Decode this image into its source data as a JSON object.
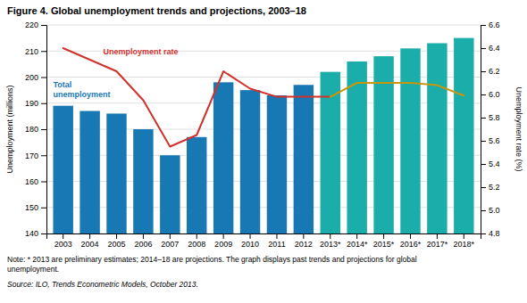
{
  "chart_data": {
    "type": "bar",
    "title": "Figure 4.  Global unemployment trends and projections, 2003–18",
    "categories": [
      "2003",
      "2004",
      "2005",
      "2006",
      "2007",
      "2008",
      "2009",
      "2010",
      "2011",
      "2012",
      "2013*",
      "2014*",
      "2015*",
      "2016*",
      "2017*",
      "2018*"
    ],
    "series": [
      {
        "type": "bar",
        "values": [
          189,
          187,
          186,
          180,
          170,
          177,
          198,
          195,
          193,
          197,
          202,
          206,
          208,
          211,
          213,
          215
        ],
        "colors": [
          "#1878b4",
          "#1878b4",
          "#1878b4",
          "#1878b4",
          "#1878b4",
          "#1878b4",
          "#1878b4",
          "#1878b4",
          "#1878b4",
          "#1878b4",
          "#1aadaa",
          "#1aadaa",
          "#1aadaa",
          "#1aadaa",
          "#1aadaa",
          "#1aadaa"
        ]
      },
      {
        "type": "line",
        "axis": "y2",
        "color": "#d0312d",
        "values": [
          6.4,
          6.3,
          6.2,
          5.95,
          5.55,
          5.65,
          6.2,
          6.05,
          5.98,
          5.98,
          5.98,
          null,
          null,
          null,
          null,
          null
        ]
      },
      {
        "type": "line",
        "axis": "y2",
        "color": "#c8960c",
        "values": [
          null,
          null,
          null,
          null,
          null,
          null,
          null,
          null,
          null,
          null,
          5.98,
          6.1,
          6.1,
          6.1,
          6.08,
          5.99
        ]
      }
    ],
    "ylabel": "Unemployment (millions)",
    "y2label": "Unemployment rate (%)",
    "ylim": [
      140,
      220
    ],
    "yticks": [
      140,
      150,
      160,
      170,
      180,
      190,
      200,
      210,
      220
    ],
    "y2lim": [
      4.8,
      6.6
    ],
    "y2ticks": [
      4.8,
      {
        "value": 5.0,
        "label": "5.0"
      },
      5.2,
      5.4,
      5.6,
      5.8,
      {
        "value": 6.0,
        "label": "6.0"
      },
      6.2,
      6.4,
      6.6
    ],
    "grid": true,
    "annotations": [
      "Unemployment rate",
      "Total\nunemployment"
    ],
    "note": "Note:  * 2013 are preliminary estimates; 2014–18 are projections. The graph displays past trends and projections for global\nunemployment.",
    "source": "Source:  ILO, Trends Econometric Models, October 2013."
  }
}
